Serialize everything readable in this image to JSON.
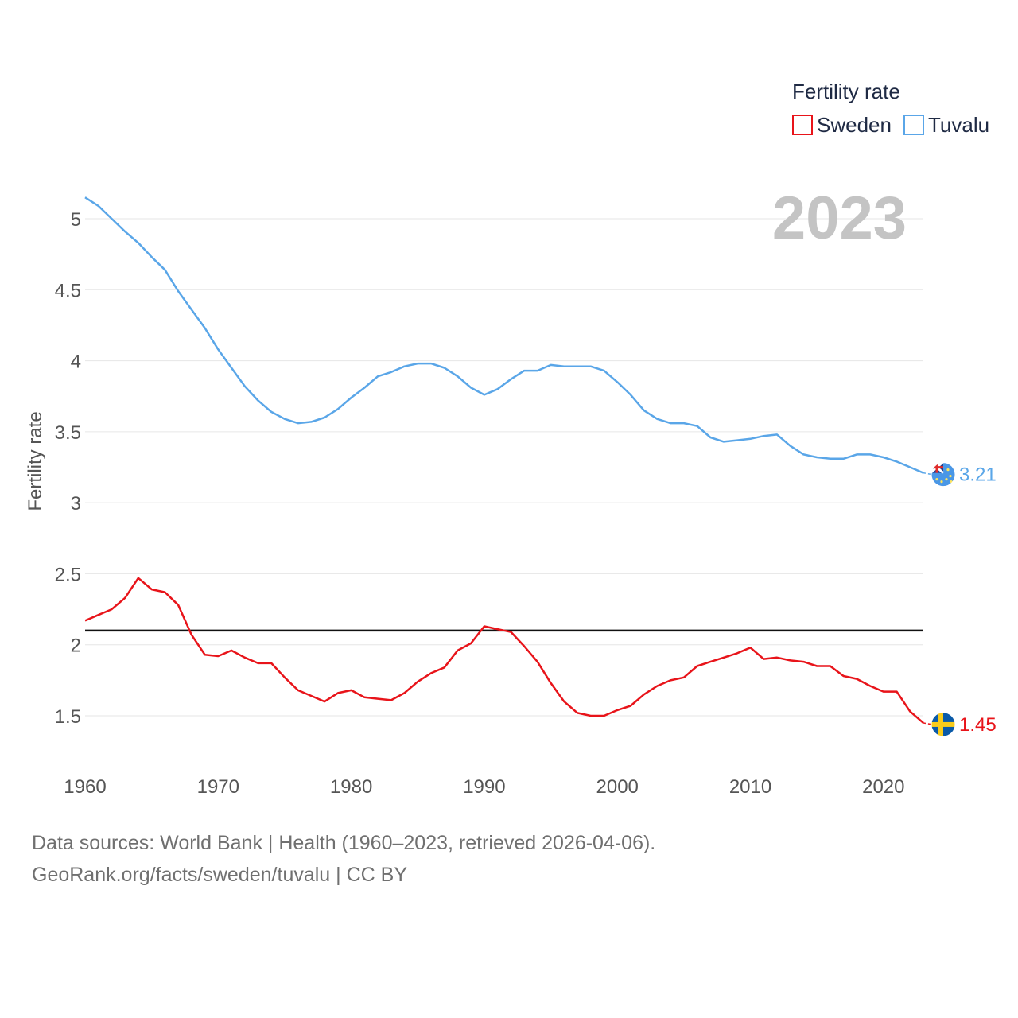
{
  "chart_data": {
    "type": "line",
    "title": "",
    "year_label": "2023",
    "legend_title": "Fertility rate",
    "xlabel": "",
    "ylabel": "Fertility rate",
    "xlim": [
      1960,
      2023
    ],
    "ylim": [
      1.2,
      5.3
    ],
    "x_ticks": [
      1960,
      1970,
      1980,
      1990,
      2000,
      2010,
      2020
    ],
    "y_ticks": [
      1.5,
      2,
      2.5,
      3,
      3.5,
      4,
      4.5,
      5
    ],
    "reference_line": 2.1,
    "x": [
      1960,
      1961,
      1962,
      1963,
      1964,
      1965,
      1966,
      1967,
      1968,
      1969,
      1970,
      1971,
      1972,
      1973,
      1974,
      1975,
      1976,
      1977,
      1978,
      1979,
      1980,
      1981,
      1982,
      1983,
      1984,
      1985,
      1986,
      1987,
      1988,
      1989,
      1990,
      1991,
      1992,
      1993,
      1994,
      1995,
      1996,
      1997,
      1998,
      1999,
      2000,
      2001,
      2002,
      2003,
      2004,
      2005,
      2006,
      2007,
      2008,
      2009,
      2010,
      2011,
      2012,
      2013,
      2014,
      2015,
      2016,
      2017,
      2018,
      2019,
      2020,
      2021,
      2022,
      2023
    ],
    "series": [
      {
        "name": "Sweden",
        "color": "#e8141a",
        "end_label": "1.45",
        "flag": "sweden-flag-icon",
        "values": [
          2.17,
          2.21,
          2.25,
          2.33,
          2.47,
          2.39,
          2.37,
          2.28,
          2.07,
          1.93,
          1.92,
          1.96,
          1.91,
          1.87,
          1.87,
          1.77,
          1.68,
          1.64,
          1.6,
          1.66,
          1.68,
          1.63,
          1.62,
          1.61,
          1.66,
          1.74,
          1.8,
          1.84,
          1.96,
          2.01,
          2.13,
          2.11,
          2.09,
          1.99,
          1.88,
          1.73,
          1.6,
          1.52,
          1.5,
          1.5,
          1.54,
          1.57,
          1.65,
          1.71,
          1.75,
          1.77,
          1.85,
          1.88,
          1.91,
          1.94,
          1.98,
          1.9,
          1.91,
          1.89,
          1.88,
          1.85,
          1.85,
          1.78,
          1.76,
          1.71,
          1.67,
          1.67,
          1.53,
          1.45
        ]
      },
      {
        "name": "Tuvalu",
        "color": "#5aa6e8",
        "end_label": "3.21",
        "flag": "tuvalu-flag-icon",
        "values": [
          5.15,
          5.09,
          5.0,
          4.91,
          4.83,
          4.73,
          4.64,
          4.49,
          4.36,
          4.23,
          4.08,
          3.95,
          3.82,
          3.72,
          3.64,
          3.59,
          3.56,
          3.57,
          3.6,
          3.66,
          3.74,
          3.81,
          3.89,
          3.92,
          3.96,
          3.98,
          3.98,
          3.95,
          3.89,
          3.81,
          3.76,
          3.8,
          3.87,
          3.93,
          3.93,
          3.97,
          3.96,
          3.96,
          3.96,
          3.93,
          3.85,
          3.76,
          3.65,
          3.59,
          3.56,
          3.56,
          3.54,
          3.46,
          3.43,
          3.44,
          3.45,
          3.47,
          3.48,
          3.4,
          3.34,
          3.32,
          3.31,
          3.31,
          3.34,
          3.34,
          3.32,
          3.29,
          3.25,
          3.21
        ]
      }
    ]
  },
  "footer": {
    "line1": "Data sources: World Bank | Health (1960–2023, retrieved 2026-04-06).",
    "line2": "GeoRank.org/facts/sweden/tuvalu | CC BY"
  }
}
